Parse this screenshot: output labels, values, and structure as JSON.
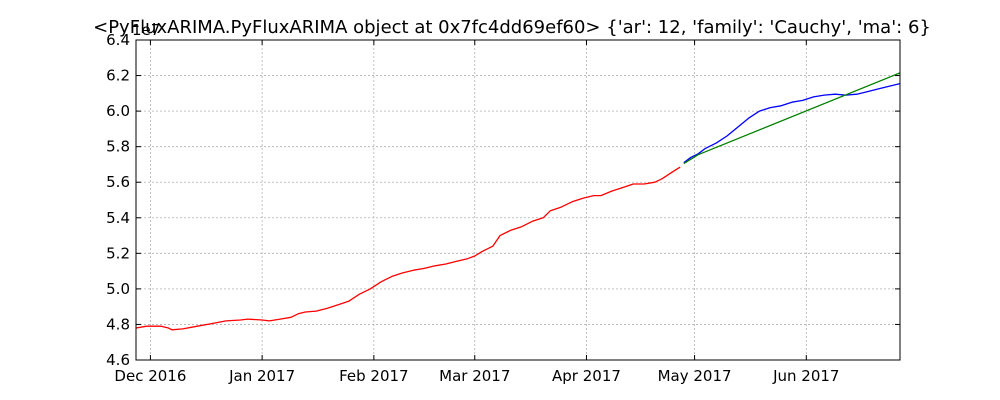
{
  "chart_data": {
    "type": "line",
    "title": "<PyFluxARIMA.PyFluxARIMA object at 0x7fc4dd69ef60> {'ar': 12, 'family': 'Cauchy', 'ma': 6}",
    "xlabel": "",
    "ylabel": "",
    "y_offset_label": "1e7",
    "xlim": [
      "2016-11-27",
      "2017-06-27"
    ],
    "ylim": [
      4.6,
      6.4
    ],
    "grid": true,
    "x_ticks": [
      {
        "date": "2016-12-01",
        "label": "Dec 2016"
      },
      {
        "date": "2017-01-01",
        "label": "Jan 2017"
      },
      {
        "date": "2017-02-01",
        "label": "Feb 2017"
      },
      {
        "date": "2017-03-01",
        "label": "Mar 2017"
      },
      {
        "date": "2017-04-01",
        "label": "Apr 2017"
      },
      {
        "date": "2017-05-01",
        "label": "May 2017"
      },
      {
        "date": "2017-06-01",
        "label": "Jun 2017"
      }
    ],
    "y_ticks": [
      "4.6",
      "4.8",
      "5.0",
      "5.2",
      "5.4",
      "5.6",
      "5.8",
      "6.0",
      "6.2",
      "6.4"
    ],
    "series": [
      {
        "color": "#ff0000",
        "points": [
          [
            "2016-11-27",
            4.78
          ],
          [
            "2016-11-30",
            4.79
          ],
          [
            "2016-12-04",
            4.79
          ],
          [
            "2016-12-06",
            4.78
          ],
          [
            "2016-12-07",
            4.77
          ],
          [
            "2016-12-10",
            4.775
          ],
          [
            "2016-12-14",
            4.79
          ],
          [
            "2016-12-18",
            4.805
          ],
          [
            "2016-12-22",
            4.82
          ],
          [
            "2016-12-26",
            4.825
          ],
          [
            "2016-12-28",
            4.83
          ],
          [
            "2017-01-01",
            4.825
          ],
          [
            "2017-01-03",
            4.82
          ],
          [
            "2017-01-06",
            4.83
          ],
          [
            "2017-01-09",
            4.84
          ],
          [
            "2017-01-11",
            4.86
          ],
          [
            "2017-01-13",
            4.87
          ],
          [
            "2017-01-16",
            4.875
          ],
          [
            "2017-01-19",
            4.89
          ],
          [
            "2017-01-22",
            4.91
          ],
          [
            "2017-01-25",
            4.93
          ],
          [
            "2017-01-28",
            4.97
          ],
          [
            "2017-01-31",
            5.0
          ],
          [
            "2017-02-03",
            5.04
          ],
          [
            "2017-02-06",
            5.07
          ],
          [
            "2017-02-09",
            5.09
          ],
          [
            "2017-02-12",
            5.105
          ],
          [
            "2017-02-15",
            5.115
          ],
          [
            "2017-02-18",
            5.13
          ],
          [
            "2017-02-21",
            5.14
          ],
          [
            "2017-02-24",
            5.155
          ],
          [
            "2017-02-27",
            5.17
          ],
          [
            "2017-03-01",
            5.185
          ],
          [
            "2017-03-03",
            5.21
          ],
          [
            "2017-03-06",
            5.24
          ],
          [
            "2017-03-08",
            5.3
          ],
          [
            "2017-03-11",
            5.33
          ],
          [
            "2017-03-14",
            5.35
          ],
          [
            "2017-03-17",
            5.38
          ],
          [
            "2017-03-20",
            5.4
          ],
          [
            "2017-03-22",
            5.44
          ],
          [
            "2017-03-25",
            5.46
          ],
          [
            "2017-03-28",
            5.49
          ],
          [
            "2017-03-31",
            5.51
          ],
          [
            "2017-04-03",
            5.525
          ],
          [
            "2017-04-05",
            5.525
          ],
          [
            "2017-04-08",
            5.55
          ],
          [
            "2017-04-11",
            5.57
          ],
          [
            "2017-04-14",
            5.59
          ],
          [
            "2017-04-17",
            5.59
          ],
          [
            "2017-04-20",
            5.6
          ],
          [
            "2017-04-22",
            5.62
          ],
          [
            "2017-04-25",
            5.66
          ],
          [
            "2017-04-27",
            5.685
          ]
        ]
      },
      {
        "color": "#0000ff",
        "points": [
          [
            "2017-04-28",
            5.71
          ],
          [
            "2017-04-30",
            5.74
          ],
          [
            "2017-05-02",
            5.76
          ],
          [
            "2017-05-04",
            5.79
          ],
          [
            "2017-05-07",
            5.82
          ],
          [
            "2017-05-10",
            5.86
          ],
          [
            "2017-05-13",
            5.91
          ],
          [
            "2017-05-16",
            5.96
          ],
          [
            "2017-05-19",
            6.0
          ],
          [
            "2017-05-22",
            6.02
          ],
          [
            "2017-05-25",
            6.03
          ],
          [
            "2017-05-28",
            6.05
          ],
          [
            "2017-05-31",
            6.06
          ],
          [
            "2017-06-03",
            6.08
          ],
          [
            "2017-06-06",
            6.09
          ],
          [
            "2017-06-09",
            6.095
          ],
          [
            "2017-06-12",
            6.09
          ],
          [
            "2017-06-15",
            6.095
          ],
          [
            "2017-06-18",
            6.11
          ],
          [
            "2017-06-21",
            6.125
          ],
          [
            "2017-06-24",
            6.14
          ],
          [
            "2017-06-27",
            6.155
          ]
        ]
      },
      {
        "color": "#008000",
        "points": [
          [
            "2017-04-28",
            5.705
          ],
          [
            "2017-05-02",
            5.755
          ],
          [
            "2017-06-27",
            6.215
          ]
        ]
      }
    ]
  }
}
